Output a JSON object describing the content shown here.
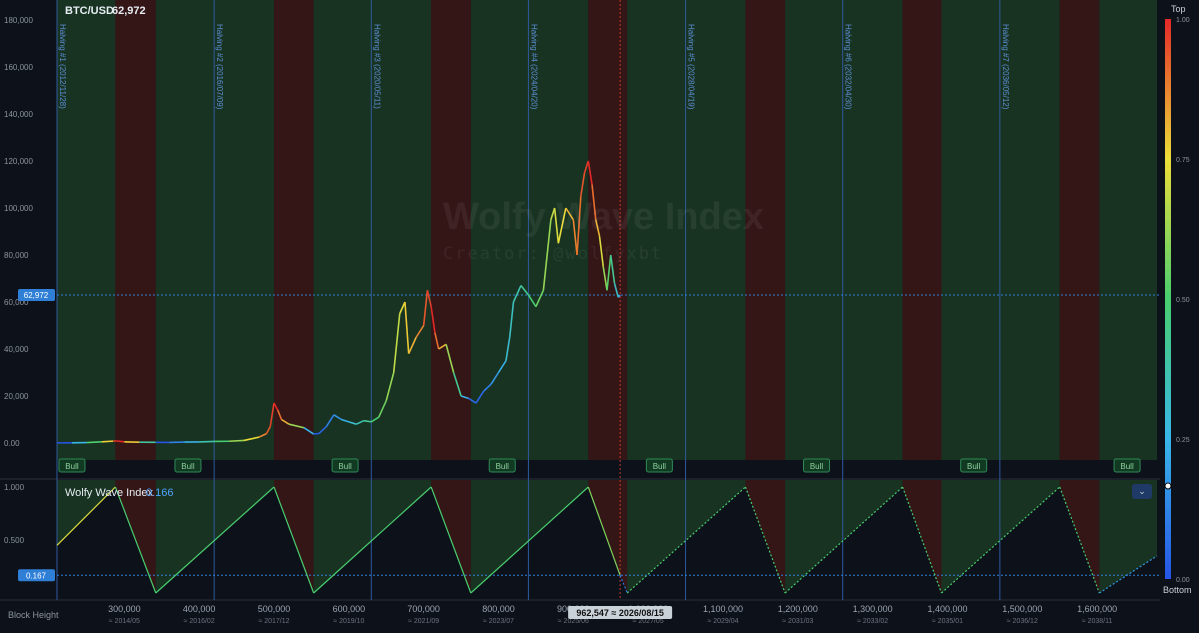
{
  "header": {
    "symbol": "BTC/USD",
    "price": "62,972"
  },
  "watermark": {
    "title": "Wolfy Wave Index",
    "subtitle": "Creator: @wolfyxbt"
  },
  "indicator": {
    "name": "Wolfy Wave Index",
    "value": "0.166",
    "marker": "0.167",
    "collapse_icon": "chevron-down-icon"
  },
  "price_marker": "62,972",
  "x_title": "Block Height",
  "crosshair_label": "962,547 ≈ 2026/08/15",
  "legend": {
    "top": "Top",
    "bottom": "Bottom",
    "ticks": [
      "1.00",
      "0.75",
      "0.50",
      "0.25",
      "0.00"
    ]
  },
  "colors": {
    "background": "#0d111a",
    "bull": "#1c3a24",
    "bear": "#3d1717",
    "halving_line": "#2e5a9e",
    "accent": "#2f7fd6"
  },
  "chart_data": [
    {
      "type": "line",
      "title": "BTC/USD",
      "y_ticks": [
        "180,000",
        "160,000",
        "140,000",
        "120,000",
        "100,000",
        "80,000",
        "60,000",
        "40,000",
        "20,000",
        "0.00"
      ],
      "ylim": [
        0,
        180000
      ],
      "x_ticks": [
        {
          "h": "300,000",
          "d": "≈ 2014/05"
        },
        {
          "h": "400,000",
          "d": "≈ 2016/02"
        },
        {
          "h": "500,000",
          "d": "≈ 2017/12"
        },
        {
          "h": "600,000",
          "d": "≈ 2019/10"
        },
        {
          "h": "700,000",
          "d": "≈ 2021/09"
        },
        {
          "h": "800,000",
          "d": "≈ 2023/07"
        },
        {
          "h": "900,000",
          "d": "≈ 2025/06"
        },
        {
          "h": "1,000,000",
          "d": "≈ 2027/05"
        },
        {
          "h": "1,100,000",
          "d": "≈ 2029/04"
        },
        {
          "h": "1,200,000",
          "d": "≈ 2031/03"
        },
        {
          "h": "1,300,000",
          "d": "≈ 2033/02"
        },
        {
          "h": "1,400,000",
          "d": "≈ 2035/01"
        },
        {
          "h": "1,500,000",
          "d": "≈ 2036/12"
        },
        {
          "h": "1,600,000",
          "d": "≈ 2038/11"
        }
      ],
      "xlim": [
        210000,
        1680000
      ],
      "halvings": [
        {
          "label": "Halving #1 (2012/11/28)",
          "block": 210000
        },
        {
          "label": "Halving #2 (2016/07/09)",
          "block": 420000
        },
        {
          "label": "Halving #3 (2020/05/11)",
          "block": 630000
        },
        {
          "label": "Halving #4 (2024/04/20)",
          "block": 840000
        },
        {
          "label": "Halving #5 (2028/04/19)",
          "block": 1050000
        },
        {
          "label": "Halving #6 (2032/04/30)",
          "block": 1260000
        },
        {
          "label": "Halving #7 (2036/05/12)",
          "block": 1470000
        }
      ],
      "current_block": 962547,
      "phases": [
        {
          "type": "bull",
          "start": 210000,
          "end": 288000
        },
        {
          "type": "bear",
          "start": 288000,
          "end": 342000
        },
        {
          "type": "bull",
          "start": 342000,
          "end": 500000
        },
        {
          "type": "bear",
          "start": 500000,
          "end": 553000
        },
        {
          "type": "bull",
          "start": 553000,
          "end": 710000
        },
        {
          "type": "bear",
          "start": 710000,
          "end": 763000
        },
        {
          "type": "bull",
          "start": 763000,
          "end": 920000
        },
        {
          "type": "bear",
          "start": 920000,
          "end": 972000
        },
        {
          "type": "bull",
          "start": 972000,
          "end": 1130000
        },
        {
          "type": "bear",
          "start": 1130000,
          "end": 1183000
        },
        {
          "type": "bull",
          "start": 1183000,
          "end": 1340000
        },
        {
          "type": "bear",
          "start": 1340000,
          "end": 1392000
        },
        {
          "type": "bull",
          "start": 1392000,
          "end": 1550000
        },
        {
          "type": "bear",
          "start": 1550000,
          "end": 1603000
        },
        {
          "type": "bull",
          "start": 1603000,
          "end": 1680000
        }
      ],
      "bull_labels": [
        {
          "text": "Bull",
          "block": 230000
        },
        {
          "text": "Bull",
          "block": 385000
        },
        {
          "text": "Bull",
          "block": 595000
        },
        {
          "text": "Bull",
          "block": 805000
        },
        {
          "text": "Bull",
          "block": 1015000
        },
        {
          "text": "Bull",
          "block": 1225000
        },
        {
          "text": "Bull",
          "block": 1435000
        },
        {
          "text": "Bull",
          "block": 1640000
        }
      ],
      "series": [
        {
          "points": [
            [
              210000,
              50
            ],
            [
              230000,
              100
            ],
            [
              250000,
              200
            ],
            [
              270000,
              500
            ],
            [
              285000,
              800
            ],
            [
              288000,
              900
            ],
            [
              300000,
              500
            ],
            [
              320000,
              350
            ],
            [
              342000,
              300
            ],
            [
              360000,
              250
            ],
            [
              380000,
              400
            ],
            [
              400000,
              450
            ],
            [
              420000,
              650
            ],
            [
              440000,
              750
            ],
            [
              460000,
              1100
            ],
            [
              480000,
              2500
            ],
            [
              490000,
              4000
            ],
            [
              495000,
              7000
            ],
            [
              500000,
              17000
            ],
            [
              505000,
              14000
            ],
            [
              510000,
              10000
            ],
            [
              520000,
              8000
            ],
            [
              540000,
              6500
            ],
            [
              553000,
              3800
            ],
            [
              560000,
              4000
            ],
            [
              570000,
              7000
            ],
            [
              580000,
              12000
            ],
            [
              590000,
              10000
            ],
            [
              600000,
              9000
            ],
            [
              610000,
              8000
            ],
            [
              620000,
              9500
            ],
            [
              630000,
              9000
            ],
            [
              640000,
              11000
            ],
            [
              650000,
              18000
            ],
            [
              660000,
              30000
            ],
            [
              668000,
              55000
            ],
            [
              675000,
              60000
            ],
            [
              680000,
              38000
            ],
            [
              690000,
              45000
            ],
            [
              700000,
              50000
            ],
            [
              705000,
              65000
            ],
            [
              710000,
              58000
            ],
            [
              715000,
              47000
            ],
            [
              720000,
              40000
            ],
            [
              730000,
              42000
            ],
            [
              740000,
              30000
            ],
            [
              750000,
              20000
            ],
            [
              760000,
              19000
            ],
            [
              770000,
              17000
            ],
            [
              780000,
              22000
            ],
            [
              790000,
              25000
            ],
            [
              800000,
              30000
            ],
            [
              810000,
              35000
            ],
            [
              815000,
              45000
            ],
            [
              820000,
              60000
            ],
            [
              830000,
              67000
            ],
            [
              840000,
              63000
            ],
            [
              850000,
              58000
            ],
            [
              860000,
              65000
            ],
            [
              870000,
              95000
            ],
            [
              875000,
              100000
            ],
            [
              880000,
              85000
            ],
            [
              890000,
              100000
            ],
            [
              900000,
              95000
            ],
            [
              905000,
              80000
            ],
            [
              910000,
              105000
            ],
            [
              915000,
              115000
            ],
            [
              920000,
              120000
            ],
            [
              925000,
              110000
            ],
            [
              930000,
              95000
            ],
            [
              935000,
              88000
            ],
            [
              940000,
              75000
            ],
            [
              945000,
              65000
            ],
            [
              950000,
              80000
            ],
            [
              955000,
              68000
            ],
            [
              960000,
              62000
            ],
            [
              962547,
              62972
            ]
          ]
        }
      ]
    },
    {
      "type": "line",
      "title": "Wolfy Wave Index",
      "y_ticks": [
        "1.000",
        "0.500",
        "0.000"
      ],
      "ylim": [
        0,
        1
      ],
      "series": [
        {
          "points": [
            [
              210000,
              0.45
            ],
            [
              288000,
              1.0
            ],
            [
              342000,
              0.0
            ],
            [
              500000,
              1.0
            ],
            [
              553000,
              0.0
            ],
            [
              710000,
              1.0
            ],
            [
              763000,
              0.0
            ],
            [
              920000,
              1.0
            ],
            [
              962547,
              0.166
            ]
          ]
        },
        {
          "points": [
            [
              962547,
              0.166
            ],
            [
              972000,
              0.0
            ],
            [
              1130000,
              1.0
            ],
            [
              1183000,
              0.0
            ],
            [
              1340000,
              1.0
            ],
            [
              1392000,
              0.0
            ],
            [
              1550000,
              1.0
            ],
            [
              1603000,
              0.0
            ],
            [
              1680000,
              0.35
            ]
          ]
        }
      ]
    }
  ]
}
